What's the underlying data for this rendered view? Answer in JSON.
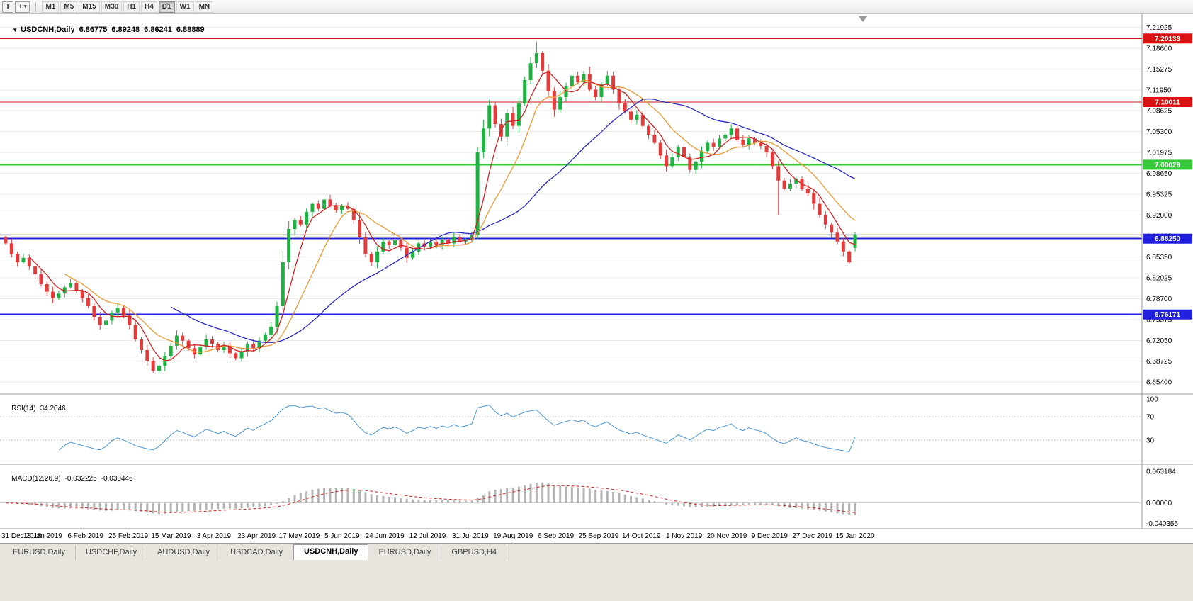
{
  "toolbar": {
    "chart_type_button": "T",
    "cursor_button": "+",
    "timeframes": [
      "M1",
      "M5",
      "M15",
      "M30",
      "H1",
      "H4",
      "D1",
      "W1",
      "MN"
    ],
    "active_timeframe": "D1"
  },
  "chart": {
    "symbol_header": {
      "arrow": "▼",
      "symbol": "USDCNH,Daily",
      "open": "6.86775",
      "high": "6.89248",
      "low": "6.86241",
      "close": "6.88889"
    },
    "current_price": 6.88889,
    "price_axis_ticks": [
      "7.21925",
      "7.18600",
      "7.15275",
      "7.11950",
      "7.08625",
      "7.05300",
      "7.01975",
      "6.98650",
      "6.95325",
      "6.92000",
      "6.88675",
      "6.85350",
      "6.82025",
      "6.78700",
      "6.75375",
      "6.72050",
      "6.68725",
      "6.65400"
    ],
    "levels": [
      {
        "price": 7.20133,
        "label": "7.20133",
        "color": "#dd1111",
        "width": 1
      },
      {
        "price": 7.10011,
        "label": "7.10011",
        "color": "#dd1111",
        "width": 1
      },
      {
        "price": 7.00029,
        "label": "7.00029",
        "color": "#35c93a",
        "width": 2
      },
      {
        "price": 6.8825,
        "label": "6.88250",
        "color": "#2020dd",
        "width": 2
      },
      {
        "price": 6.76171,
        "label": "6.76171",
        "color": "#2020dd",
        "width": 2
      }
    ]
  },
  "indicators": {
    "rsi": {
      "label": "RSI(14)",
      "value": "34.2046",
      "color": "#4a96d2",
      "axis_ticks": [
        "100",
        "70",
        "30"
      ],
      "levels": [
        70,
        30
      ]
    },
    "macd": {
      "label": "MACD(12,26,9)",
      "value_main": "-0.032225",
      "value_signal": "-0.030446",
      "histogram_color": "#b4b4b4",
      "signal_color": "#cc2222",
      "axis_ticks": [
        "0.063184",
        "0.00000",
        "-0.040355"
      ]
    }
  },
  "chart_data": {
    "type": "candlestick",
    "symbol": "USDCNH",
    "timeframe": "Daily",
    "y_range": [
      6.635,
      7.231
    ],
    "x_labels": [
      "31 Dec 2018",
      "18 Jan 2019",
      "6 Feb 2019",
      "25 Feb 2019",
      "15 Mar 2019",
      "3 Apr 2019",
      "23 Apr 2019",
      "17 May 2019",
      "5 Jun 2019",
      "24 Jun 2019",
      "12 Jul 2019",
      "31 Jul 2019",
      "19 Aug 2019",
      "6 Sep 2019",
      "25 Sep 2019",
      "14 Oct 2019",
      "1 Nov 2019",
      "20 Nov 2019",
      "9 Dec 2019",
      "27 Dec 2019",
      "15 Jan 2020"
    ],
    "first_open": 6.885,
    "closes": [
      6.875,
      6.858,
      6.845,
      6.852,
      6.838,
      6.826,
      6.81,
      6.798,
      6.788,
      6.795,
      6.805,
      6.812,
      6.8,
      6.788,
      6.775,
      6.758,
      6.745,
      6.752,
      6.765,
      6.772,
      6.76,
      6.745,
      6.722,
      6.705,
      6.688,
      6.672,
      6.68,
      6.695,
      6.712,
      6.728,
      6.72,
      6.708,
      6.698,
      6.71,
      6.722,
      6.715,
      6.705,
      6.712,
      6.7,
      6.692,
      6.703,
      6.715,
      6.708,
      6.72,
      6.73,
      6.742,
      6.775,
      6.845,
      6.898,
      6.912,
      6.905,
      6.925,
      6.938,
      6.93,
      6.945,
      6.935,
      6.928,
      6.935,
      6.93,
      6.912,
      6.885,
      6.858,
      6.845,
      6.862,
      6.878,
      6.872,
      6.88,
      6.868,
      6.852,
      6.862,
      6.875,
      6.87,
      6.878,
      6.872,
      6.88,
      6.875,
      6.885,
      6.878,
      6.882,
      6.888,
      7.02,
      7.058,
      7.095,
      7.065,
      7.045,
      7.082,
      7.062,
      7.098,
      7.135,
      7.162,
      7.178,
      7.15,
      7.118,
      7.088,
      7.108,
      7.125,
      7.142,
      7.132,
      7.145,
      7.12,
      7.108,
      7.128,
      7.142,
      7.12,
      7.098,
      7.085,
      7.072,
      7.08,
      7.062,
      7.048,
      7.035,
      7.015,
      6.998,
      7.012,
      7.028,
      7.012,
      6.992,
      7.005,
      7.022,
      7.035,
      7.028,
      7.042,
      7.048,
      7.058,
      7.04,
      7.032,
      7.042,
      7.035,
      7.03,
      7.02,
      6.998,
      6.975,
      6.962,
      6.97,
      6.978,
      6.962,
      6.955,
      6.938,
      6.92,
      6.905,
      6.892,
      6.878,
      6.862,
      6.845,
      6.88889
    ],
    "last_candle": {
      "open": 6.86775,
      "high": 6.89248,
      "low": 6.86241,
      "close": 6.88889
    },
    "spike_high": {
      "index": 90,
      "price": 7.1965
    },
    "spike_low": {
      "index": 131,
      "price": 6.92
    },
    "colors": {
      "up": "#1fb141",
      "down": "#e33a3a"
    },
    "ma_lines": [
      {
        "name": "ma-slow",
        "period": 29,
        "color": "#2a2ac4"
      },
      {
        "name": "ma-medium",
        "period": 11,
        "color": "#ee9933"
      },
      {
        "name": "ma-fast",
        "period": 5,
        "color": "#d22222"
      }
    ]
  },
  "bottom_tabs": {
    "tabs": [
      "EURUSD,Daily",
      "USDCHF,Daily",
      "AUDUSD,Daily",
      "USDCAD,Daily",
      "USDCNH,Daily",
      "EURUSD,Daily",
      "GBPUSD,H4"
    ],
    "active_index": 4
  }
}
